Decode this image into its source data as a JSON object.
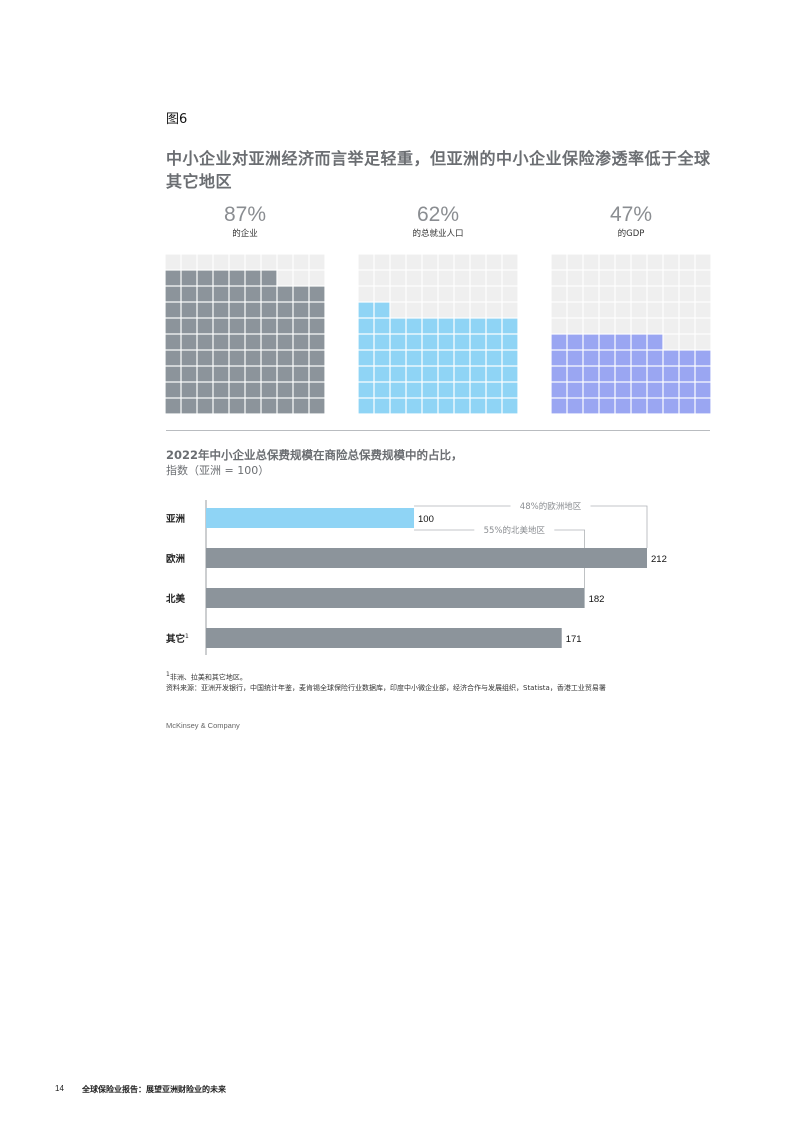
{
  "figure_label": "图6",
  "figure_title": "中小企业对亚洲经济而言举足轻重，但亚洲的中小企业保险渗透率低于全球其它地区",
  "waffles": [
    {
      "value": "87%",
      "label": "的企业",
      "fraction": 0.87,
      "color": "#8c949b"
    },
    {
      "value": "62%",
      "label": "的总就业人口",
      "fraction": 0.62,
      "color": "#8fd4f5"
    },
    {
      "value": "47%",
      "label": "的GDP",
      "fraction": 0.47,
      "color": "#9aa6f2"
    }
  ],
  "empty_cell_color": "#efefef",
  "section_title": "2022年中小企业总保费规模在商险总保费规模中的占比，",
  "section_subtitle": "指数（亚洲 = 100）",
  "chart_data": {
    "type": "bar",
    "orientation": "horizontal",
    "categories": [
      "亚洲",
      "欧洲",
      "北美",
      "其它"
    ],
    "values": [
      100,
      212,
      182,
      171
    ],
    "value_labels": [
      "100",
      "212",
      "182",
      "171"
    ],
    "colors": [
      "#8fd4f5",
      "#8c949b",
      "#8c949b",
      "#8c949b"
    ],
    "footnote_marker_on": "其它",
    "annotations": [
      "48%的欧洲地区",
      "55%的北美地区"
    ],
    "xlim": [
      0,
      212
    ]
  },
  "footnote_marker": "1",
  "footnote": "非洲、拉美和其它地区。",
  "source": "资料来源：亚洲开发银行，中国统计年鉴，麦肯锡全球保险行业数据库，印度中小微企业部，经济合作与发展组织，Statista，香港工业贸易署",
  "brand": "McKinsey & Company",
  "page_number": "14",
  "running_title": "全球保险业报告：展望亚洲财险业的未来"
}
